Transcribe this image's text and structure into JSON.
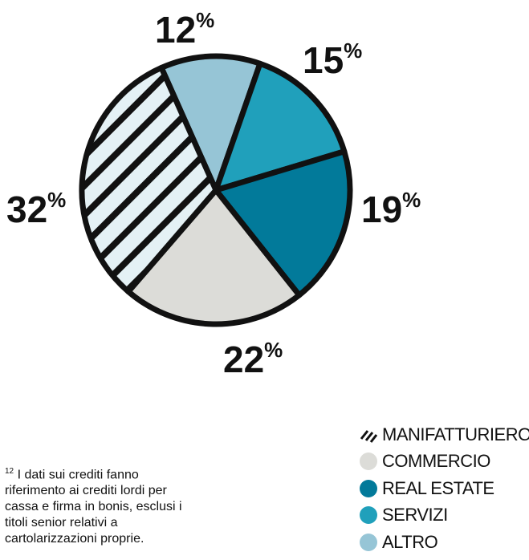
{
  "chart_data": {
    "type": "pie",
    "labels": [
      "ALTRO",
      "SERVIZI",
      "REAL ESTATE",
      "COMMERCIO",
      "MANIFATTURIERO"
    ],
    "values": [
      12,
      15,
      19,
      22,
      32
    ],
    "value_labels": [
      "12",
      "15",
      "19",
      "22",
      "32"
    ],
    "percent_symbol": "%",
    "colors": [
      "#96c5d6",
      "#20a0bb",
      "#027a9a",
      "#dcdcd8",
      "#e4f1f5"
    ],
    "hatched": [
      false,
      false,
      false,
      false,
      true
    ],
    "legend_position": "bottom-right"
  },
  "legend": {
    "items": [
      {
        "label": "MANIFATTURIERO",
        "color": "#e4f1f5",
        "hatched": true
      },
      {
        "label": "COMMERCIO",
        "color": "#dcdcd8",
        "hatched": false
      },
      {
        "label": "REAL ESTATE",
        "color": "#027a9a",
        "hatched": false
      },
      {
        "label": "SERVIZI",
        "color": "#20a0bb",
        "hatched": false
      },
      {
        "label": "ALTRO",
        "color": "#96c5d6",
        "hatched": false
      }
    ]
  },
  "footnote": {
    "number": "12",
    "text": "I dati sui crediti fanno riferimento ai crediti lordi per cassa e firma in bonis, esclusi i titoli senior relativi a cartolarizzazioni proprie."
  }
}
